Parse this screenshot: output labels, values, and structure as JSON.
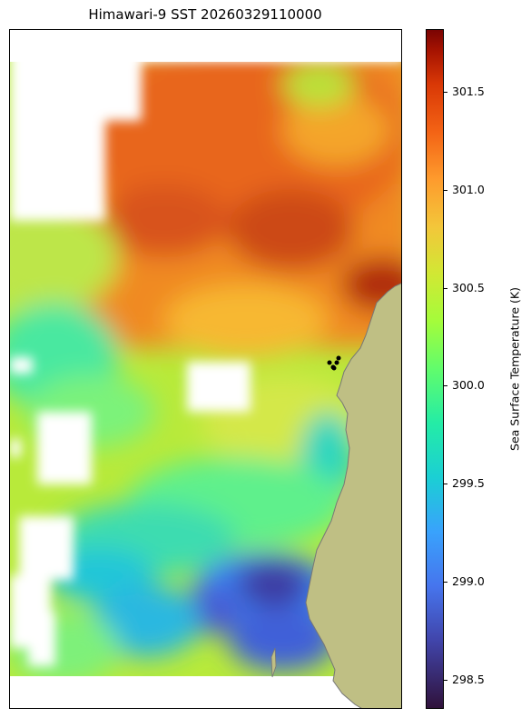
{
  "map": {
    "title": "Himawari-9 SST 20260329110000",
    "variable": "Sea Surface Temperature",
    "unit": "K",
    "colormap": "turbo",
    "land_color": "#bfbf84",
    "missing_color": "#ffffff",
    "point_marker_color": "#000000"
  },
  "colorbar": {
    "label": "Sea Surface Temperature (K)",
    "vmin": 298.35,
    "vmax": 301.82,
    "ticks": [
      {
        "value": 298.5,
        "label": "298.5"
      },
      {
        "value": 299.0,
        "label": "299.0"
      },
      {
        "value": 299.5,
        "label": "299.5"
      },
      {
        "value": 300.0,
        "label": "300.0"
      },
      {
        "value": 300.5,
        "label": "300.5"
      },
      {
        "value": 301.0,
        "label": "301.0"
      },
      {
        "value": 301.5,
        "label": "301.5"
      }
    ]
  }
}
